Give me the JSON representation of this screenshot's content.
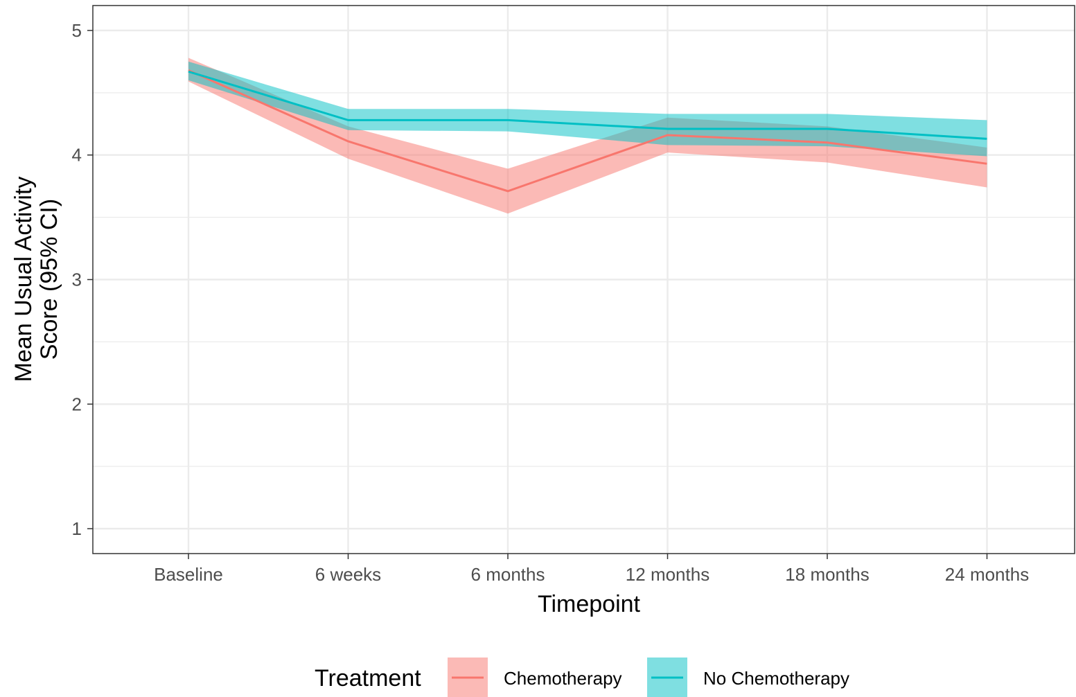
{
  "chart_data": {
    "type": "line",
    "title": "",
    "xlabel": "Timepoint",
    "ylabel_lines": [
      "Mean Usual Activity",
      "Score (95% CI)"
    ],
    "categories": [
      "Baseline",
      "6 weeks",
      "6 months",
      "12 months",
      "18 months",
      "24 months"
    ],
    "ylim": [
      0.8,
      5.2
    ],
    "yticks": [
      1,
      2,
      3,
      4,
      5
    ],
    "grid": true,
    "legend": {
      "title": "Treatment",
      "position": "bottom"
    },
    "series": [
      {
        "name": "Chemotherapy",
        "color": "#F8766D",
        "band_color": "#F8766D",
        "values": [
          4.68,
          4.11,
          3.71,
          4.16,
          4.1,
          3.93
        ],
        "lower": [
          4.59,
          3.97,
          3.53,
          4.02,
          3.94,
          3.74
        ],
        "upper": [
          4.78,
          4.23,
          3.89,
          4.3,
          4.23,
          4.06
        ]
      },
      {
        "name": "No Chemotherapy",
        "color": "#00BFC4",
        "band_color": "#00BFC4",
        "values": [
          4.67,
          4.28,
          4.28,
          4.21,
          4.21,
          4.13
        ],
        "lower": [
          4.6,
          4.2,
          4.19,
          4.08,
          4.07,
          3.99
        ],
        "upper": [
          4.75,
          4.37,
          4.37,
          4.33,
          4.33,
          4.28
        ]
      }
    ]
  }
}
